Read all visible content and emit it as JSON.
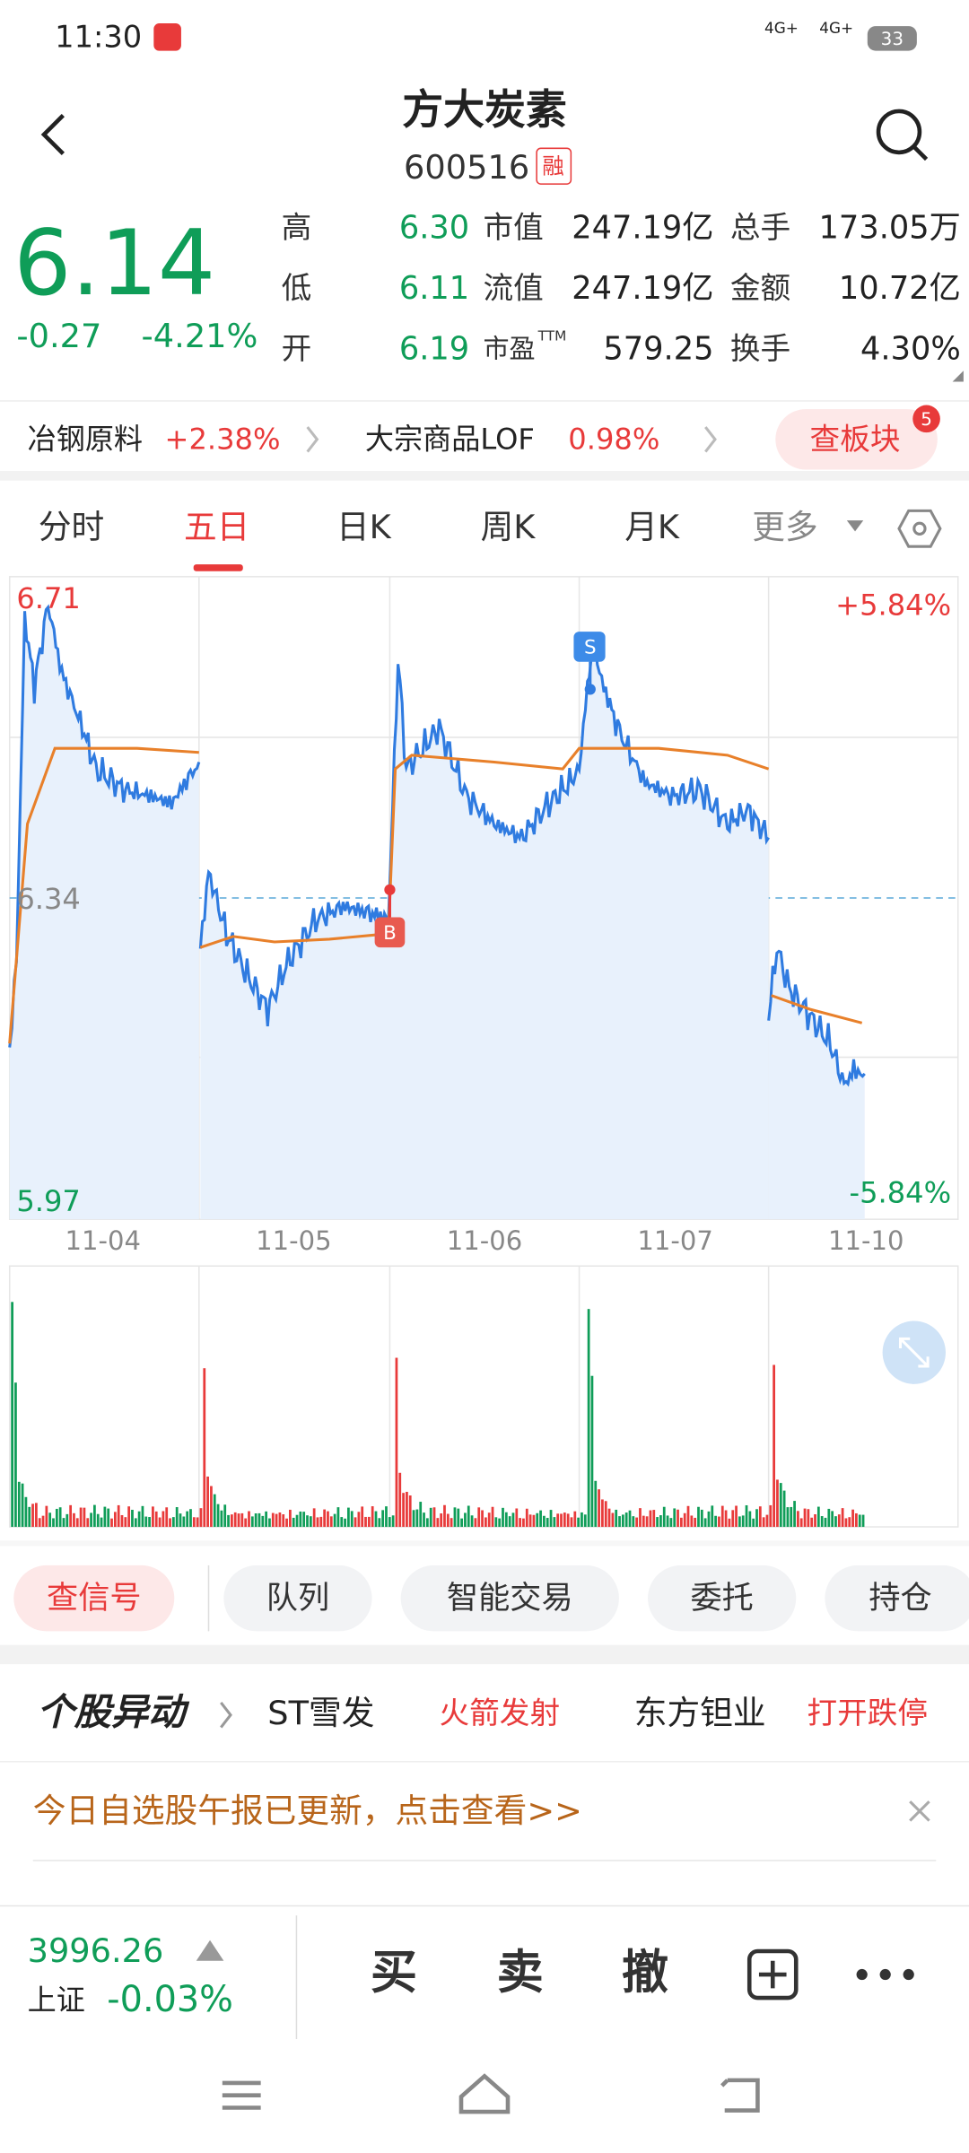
{
  "status_bar": {
    "time": "11:30",
    "network": [
      "4G+",
      "4G+"
    ],
    "battery": "33"
  },
  "header": {
    "title": "方大炭素",
    "code": "600516",
    "badge": "融"
  },
  "quote": {
    "price": "6.14",
    "change": "-0.27",
    "change_pct": "-4.21%",
    "stats": [
      [
        {
          "label": "高",
          "value": "6.30"
        },
        {
          "label": "市值",
          "value": "247.19亿"
        },
        {
          "label": "总手",
          "value": "173.05万"
        }
      ],
      [
        {
          "label": "低",
          "value": "6.11"
        },
        {
          "label": "流值",
          "value": "247.19亿"
        },
        {
          "label": "金额",
          "value": "10.72亿"
        }
      ],
      [
        {
          "label": "开",
          "value": "6.19"
        },
        {
          "label": "市盈",
          "sup": "TTM",
          "value": "579.25"
        },
        {
          "label": "换手",
          "value": "4.30%"
        }
      ]
    ]
  },
  "sectors": [
    {
      "name": "冶钢原料",
      "change": "+2.38%"
    },
    {
      "name": "大宗商品LOF",
      "change": "0.98%"
    }
  ],
  "sector_button": "查板块",
  "sector_badge": "5",
  "tabs": [
    "分时",
    "五日",
    "日K",
    "周K",
    "月K",
    "更多"
  ],
  "chart": {
    "high": "6.71",
    "high_pct": "+5.84%",
    "mid": "6.34",
    "low": "5.97",
    "low_pct": "-5.84%",
    "dates": [
      "11-04",
      "11-05",
      "11-06",
      "11-07",
      "11-10"
    ],
    "buy_marker": "B",
    "sell_marker": "S"
  },
  "actions": [
    "查信号",
    "队列",
    "智能交易",
    "委托",
    "持仓"
  ],
  "ticker": {
    "label": "个股异动",
    "items": [
      {
        "name": "ST雪发",
        "tag": "火箭发射"
      },
      {
        "name": "东方钽业",
        "tag": "打开跌停"
      }
    ]
  },
  "notice": "今日自选股午报已更新，点击查看>>",
  "index": {
    "value": "3996.26",
    "name": "上证",
    "change": "-0.03%"
  },
  "trade_buttons": [
    "买",
    "卖",
    "撤"
  ]
}
